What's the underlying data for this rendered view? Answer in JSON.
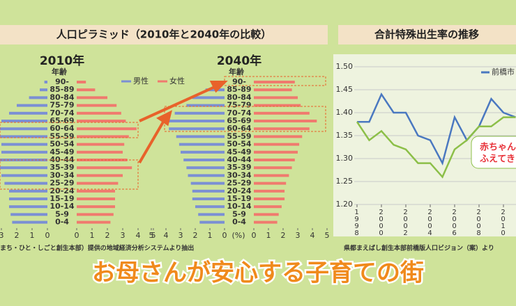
{
  "header": {
    "left": "人口ピラミッド（2010年と2040年の比較）",
    "right": "合計特殊出生率の推移"
  },
  "sources": {
    "left": "まち・ひと・しごと創生本部）提供の地域経済分析システムより抽出",
    "right": "県都まえばし創生本部前橋版人口ビジョン（案）より"
  },
  "slogan": "お母さんが安心する子育ての街",
  "callout": [
    "赤ちゃん",
    "ふえてき"
  ],
  "chart_data": [
    {
      "type": "pyramid",
      "title": "2010年",
      "category_label": "年齢",
      "categories": [
        "90-",
        "85-89",
        "80-84",
        "75-79",
        "70-74",
        "65-69",
        "60-64",
        "55-59",
        "50-54",
        "45-49",
        "40-44",
        "35-39",
        "30-34",
        "25-29",
        "20-24",
        "15-19",
        "10-14",
        "5-9",
        "0-4"
      ],
      "series": [
        {
          "name": "男性",
          "color": "#7b8fd4",
          "values": [
            0.2,
            0.5,
            1.2,
            2.0,
            2.5,
            3.0,
            3.8,
            3.3,
            3.0,
            3.0,
            3.2,
            3.6,
            3.0,
            2.8,
            2.5,
            2.5,
            2.5,
            2.4,
            2.3
          ]
        },
        {
          "name": "女性",
          "color": "#f07a6e",
          "values": [
            0.6,
            1.2,
            2.0,
            2.6,
            2.9,
            3.2,
            3.9,
            3.4,
            3.1,
            3.0,
            3.3,
            3.6,
            3.0,
            2.7,
            2.5,
            2.5,
            2.5,
            2.4,
            2.2
          ]
        }
      ],
      "xlim": [
        0,
        5
      ],
      "xticks": [
        0,
        1,
        2,
        3,
        4,
        5
      ]
    },
    {
      "type": "pyramid",
      "title": "2040年",
      "category_label": "年齢",
      "unit_label": "(%)",
      "categories": [
        "90-",
        "85-89",
        "80-84",
        "75-79",
        "70-74",
        "65-69",
        "60-64",
        "55-59",
        "50-54",
        "45-49",
        "40-44",
        "35-39",
        "30-34",
        "25-29",
        "20-24",
        "15-19",
        "10-14",
        "5-9",
        "0-4"
      ],
      "series": [
        {
          "color": "#7b8fd4",
          "values": [
            0.6,
            1.3,
            2.2,
            2.6,
            3.4,
            4.3,
            3.8,
            3.3,
            3.1,
            3.0,
            2.8,
            2.6,
            2.5,
            2.3,
            2.2,
            2.2,
            2.0,
            1.8,
            1.7
          ]
        },
        {
          "color": "#f07a6e",
          "values": [
            2.8,
            2.6,
            3.0,
            3.2,
            3.8,
            4.3,
            3.8,
            3.3,
            3.1,
            3.0,
            2.8,
            2.6,
            2.4,
            2.2,
            2.1,
            2.1,
            1.9,
            1.7,
            1.6
          ]
        }
      ],
      "xlim": [
        0,
        5
      ],
      "xticks": [
        0,
        1,
        2,
        3,
        4,
        5
      ]
    },
    {
      "type": "line",
      "x": [
        1998,
        1999,
        2000,
        2001,
        2002,
        2003,
        2004,
        2005,
        2006,
        2007,
        2008,
        2009,
        2010,
        2011
      ],
      "series": [
        {
          "name": "前橋市",
          "color": "#4a78c0",
          "values": [
            1.38,
            1.38,
            1.44,
            1.4,
            1.4,
            1.35,
            1.34,
            1.29,
            1.39,
            1.34,
            1.37,
            1.43,
            1.4,
            1.39
          ]
        },
        {
          "color": "#8cbf48",
          "values": [
            1.38,
            1.34,
            1.36,
            1.33,
            1.32,
            1.29,
            1.29,
            1.26,
            1.32,
            1.34,
            1.37,
            1.37,
            1.39,
            1.39
          ]
        }
      ],
      "xlim": [
        1998,
        2012
      ],
      "xticks": [
        1998,
        2000,
        2002,
        2004,
        2006,
        2008,
        2010
      ],
      "ylim": [
        1.2,
        1.5
      ],
      "yticks": [
        {
          "value": 1.2,
          "label": "1.20"
        },
        1.25,
        {
          "value": 1.3,
          "label": "1.30"
        },
        1.35,
        {
          "value": 1.4,
          "label": "1.40"
        },
        1.45,
        {
          "value": 1.5,
          "label": "1.50"
        }
      ],
      "grid": true
    }
  ]
}
